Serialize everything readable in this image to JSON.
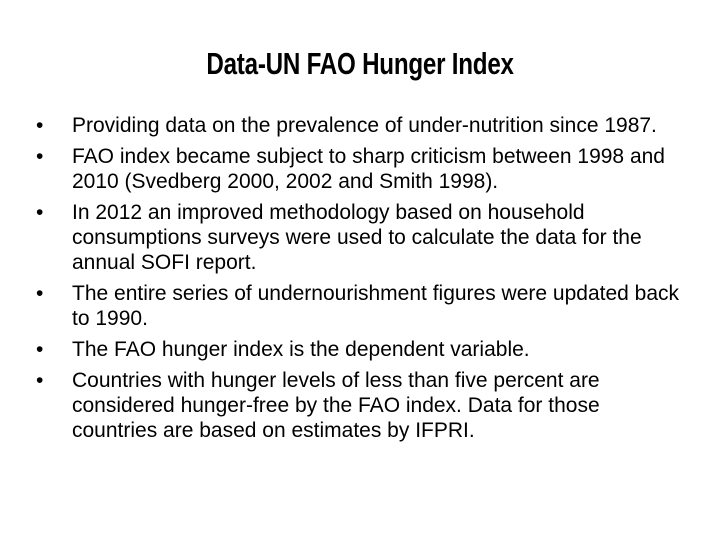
{
  "title": "Data-UN FAO Hunger Index",
  "bullets": [
    "Providing data on the prevalence of under-nutrition since 1987.",
    "FAO index became subject to sharp criticism between 1998 and 2010 (Svedberg 2000, 2002 and Smith 1998).",
    "In 2012 an improved methodology based on household consumptions surveys were used to calculate the data for the annual SOFI report.",
    "The entire series of undernourishment figures were updated back to 1990.",
    "The FAO hunger index is the dependent variable.",
    "Countries with hunger levels of less than five percent are considered hunger-free by the FAO index. Data for those countries are based on estimates by IFPRI."
  ]
}
